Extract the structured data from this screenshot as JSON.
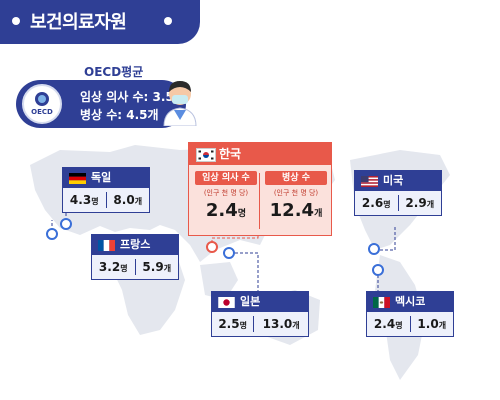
{
  "header": {
    "title": "보건의료자원"
  },
  "oecd": {
    "label": "OECD평균",
    "logo_text": "OECD",
    "line1": "임상 의사 수: 3.5명",
    "line2": "병상 수: 4.5개"
  },
  "korea": {
    "name": "한국",
    "doctors": {
      "label": "임상 의사 수",
      "sub": "(인구 천 명 당)",
      "value": "2.4",
      "unit": "명"
    },
    "beds": {
      "label": "병상 수",
      "sub": "(인구 천 명 당)",
      "value": "12.4",
      "unit": "개"
    }
  },
  "countries": {
    "germany": {
      "name": "독일",
      "doctors": "4.3",
      "doctors_unit": "명",
      "beds": "8.0",
      "beds_unit": "개"
    },
    "france": {
      "name": "프랑스",
      "doctors": "3.2",
      "doctors_unit": "명",
      "beds": "5.9",
      "beds_unit": "개"
    },
    "japan": {
      "name": "일본",
      "doctors": "2.5",
      "doctors_unit": "명",
      "beds": "13.0",
      "beds_unit": "개"
    },
    "usa": {
      "name": "미국",
      "doctors": "2.6",
      "doctors_unit": "명",
      "beds": "2.9",
      "beds_unit": "개"
    },
    "mexico": {
      "name": "멕시코",
      "doctors": "2.4",
      "doctors_unit": "명",
      "beds": "1.0",
      "beds_unit": "개"
    }
  },
  "colors": {
    "navy": "#2f3f95",
    "red": "#e8594a",
    "map": "#e4e7ee"
  }
}
